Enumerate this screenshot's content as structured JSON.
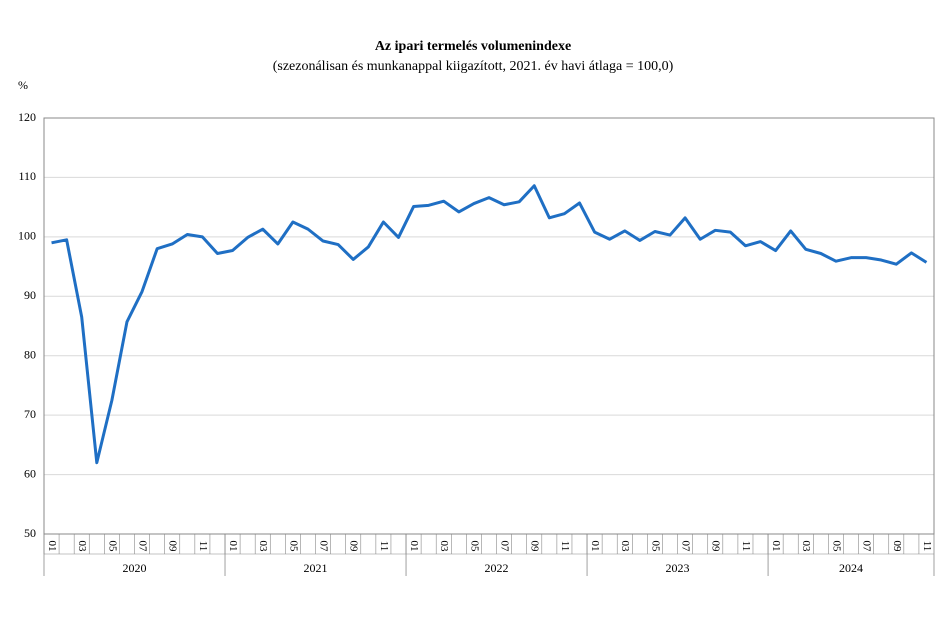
{
  "chart_data": {
    "type": "line",
    "title": "Az ipari termelés volumenindexe",
    "subtitle": "(szezonálisan és munkanappal kiigazított, 2021. év havi átlaga = 100,0)",
    "y_unit": "%",
    "categories": [
      "01",
      null,
      "03",
      null,
      "05",
      null,
      "07",
      null,
      "09",
      null,
      "11",
      null,
      "01",
      null,
      "03",
      null,
      "05",
      null,
      "07",
      null,
      "09",
      null,
      "11",
      null,
      "01",
      null,
      "03",
      null,
      "05",
      null,
      "07",
      null,
      "09",
      null,
      "11",
      null,
      "01",
      null,
      "03",
      null,
      "05",
      null,
      "07",
      null,
      "09",
      null,
      "11",
      null,
      "01",
      null,
      "03",
      null,
      "05",
      null,
      "07",
      null,
      "09",
      null,
      "11"
    ],
    "year_groups": [
      "2020",
      "2021",
      "2022",
      "2023",
      "2024"
    ],
    "values": [
      99.0,
      99.5,
      86.5,
      62.0,
      72.5,
      85.7,
      90.8,
      98.0,
      98.8,
      100.4,
      100.0,
      97.2,
      97.7,
      99.9,
      101.3,
      98.8,
      102.5,
      101.3,
      99.3,
      98.7,
      96.2,
      98.3,
      102.5,
      99.9,
      105.1,
      105.3,
      106.0,
      104.2,
      105.6,
      106.6,
      105.4,
      105.9,
      108.6,
      103.2,
      103.9,
      105.7,
      100.8,
      99.6,
      101.0,
      99.4,
      100.9,
      100.3,
      103.2,
      99.6,
      101.1,
      100.8,
      98.5,
      99.2,
      97.7,
      101.0,
      97.9,
      97.2,
      95.9,
      96.5,
      96.5,
      96.1,
      95.4,
      97.3,
      95.7
    ],
    "color": "#1f6fc4",
    "ylim": [
      50,
      120
    ],
    "yticks": [
      50,
      60,
      70,
      80,
      90,
      100,
      110,
      120
    ],
    "grid": true
  }
}
